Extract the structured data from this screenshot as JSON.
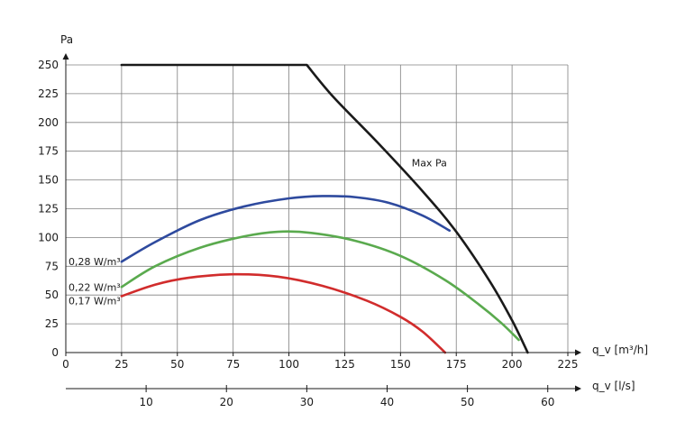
{
  "chart_data": {
    "type": "line",
    "title": "",
    "ylabel": "Pa",
    "xlabel": "q_v [m³/h]",
    "x2label": "q_v [l/s]",
    "xlim": [
      0,
      225
    ],
    "ylim": [
      0,
      250
    ],
    "x_ticks": [
      0,
      25,
      50,
      75,
      100,
      125,
      150,
      175,
      200,
      225
    ],
    "y_ticks": [
      0,
      25,
      50,
      75,
      100,
      125,
      150,
      175,
      200,
      225,
      250
    ],
    "x2_ticks": [
      10,
      20,
      30,
      40,
      50,
      60
    ],
    "grid": true,
    "series": [
      {
        "name": "Max Pa",
        "color": "#1a1a1a",
        "points": [
          [
            25,
            250
          ],
          [
            108,
            250
          ],
          [
            120,
            222
          ],
          [
            140,
            182
          ],
          [
            160,
            140
          ],
          [
            175,
            105
          ],
          [
            190,
            62
          ],
          [
            200,
            28
          ],
          [
            207,
            0
          ]
        ]
      },
      {
        "name": "0,28 W/m³",
        "color": "#2e4a9e",
        "points": [
          [
            25,
            79
          ],
          [
            40,
            96
          ],
          [
            60,
            115
          ],
          [
            80,
            127
          ],
          [
            100,
            134
          ],
          [
            115,
            136
          ],
          [
            130,
            135
          ],
          [
            145,
            130
          ],
          [
            160,
            119
          ],
          [
            172,
            106
          ]
        ]
      },
      {
        "name": "0,22 W/m³",
        "color": "#5aaa4e",
        "points": [
          [
            25,
            57
          ],
          [
            40,
            75
          ],
          [
            60,
            91
          ],
          [
            80,
            101
          ],
          [
            95,
            105
          ],
          [
            110,
            104
          ],
          [
            130,
            97
          ],
          [
            150,
            84
          ],
          [
            170,
            63
          ],
          [
            185,
            42
          ],
          [
            195,
            26
          ],
          [
            203,
            11
          ]
        ]
      },
      {
        "name": "0,17 W/m³",
        "color": "#d12c2c",
        "points": [
          [
            25,
            49
          ],
          [
            40,
            59
          ],
          [
            55,
            65
          ],
          [
            75,
            68
          ],
          [
            95,
            66
          ],
          [
            115,
            58
          ],
          [
            135,
            45
          ],
          [
            150,
            31
          ],
          [
            160,
            18
          ],
          [
            170,
            0
          ]
        ]
      }
    ],
    "annotations": [
      "Max Pa"
    ]
  }
}
